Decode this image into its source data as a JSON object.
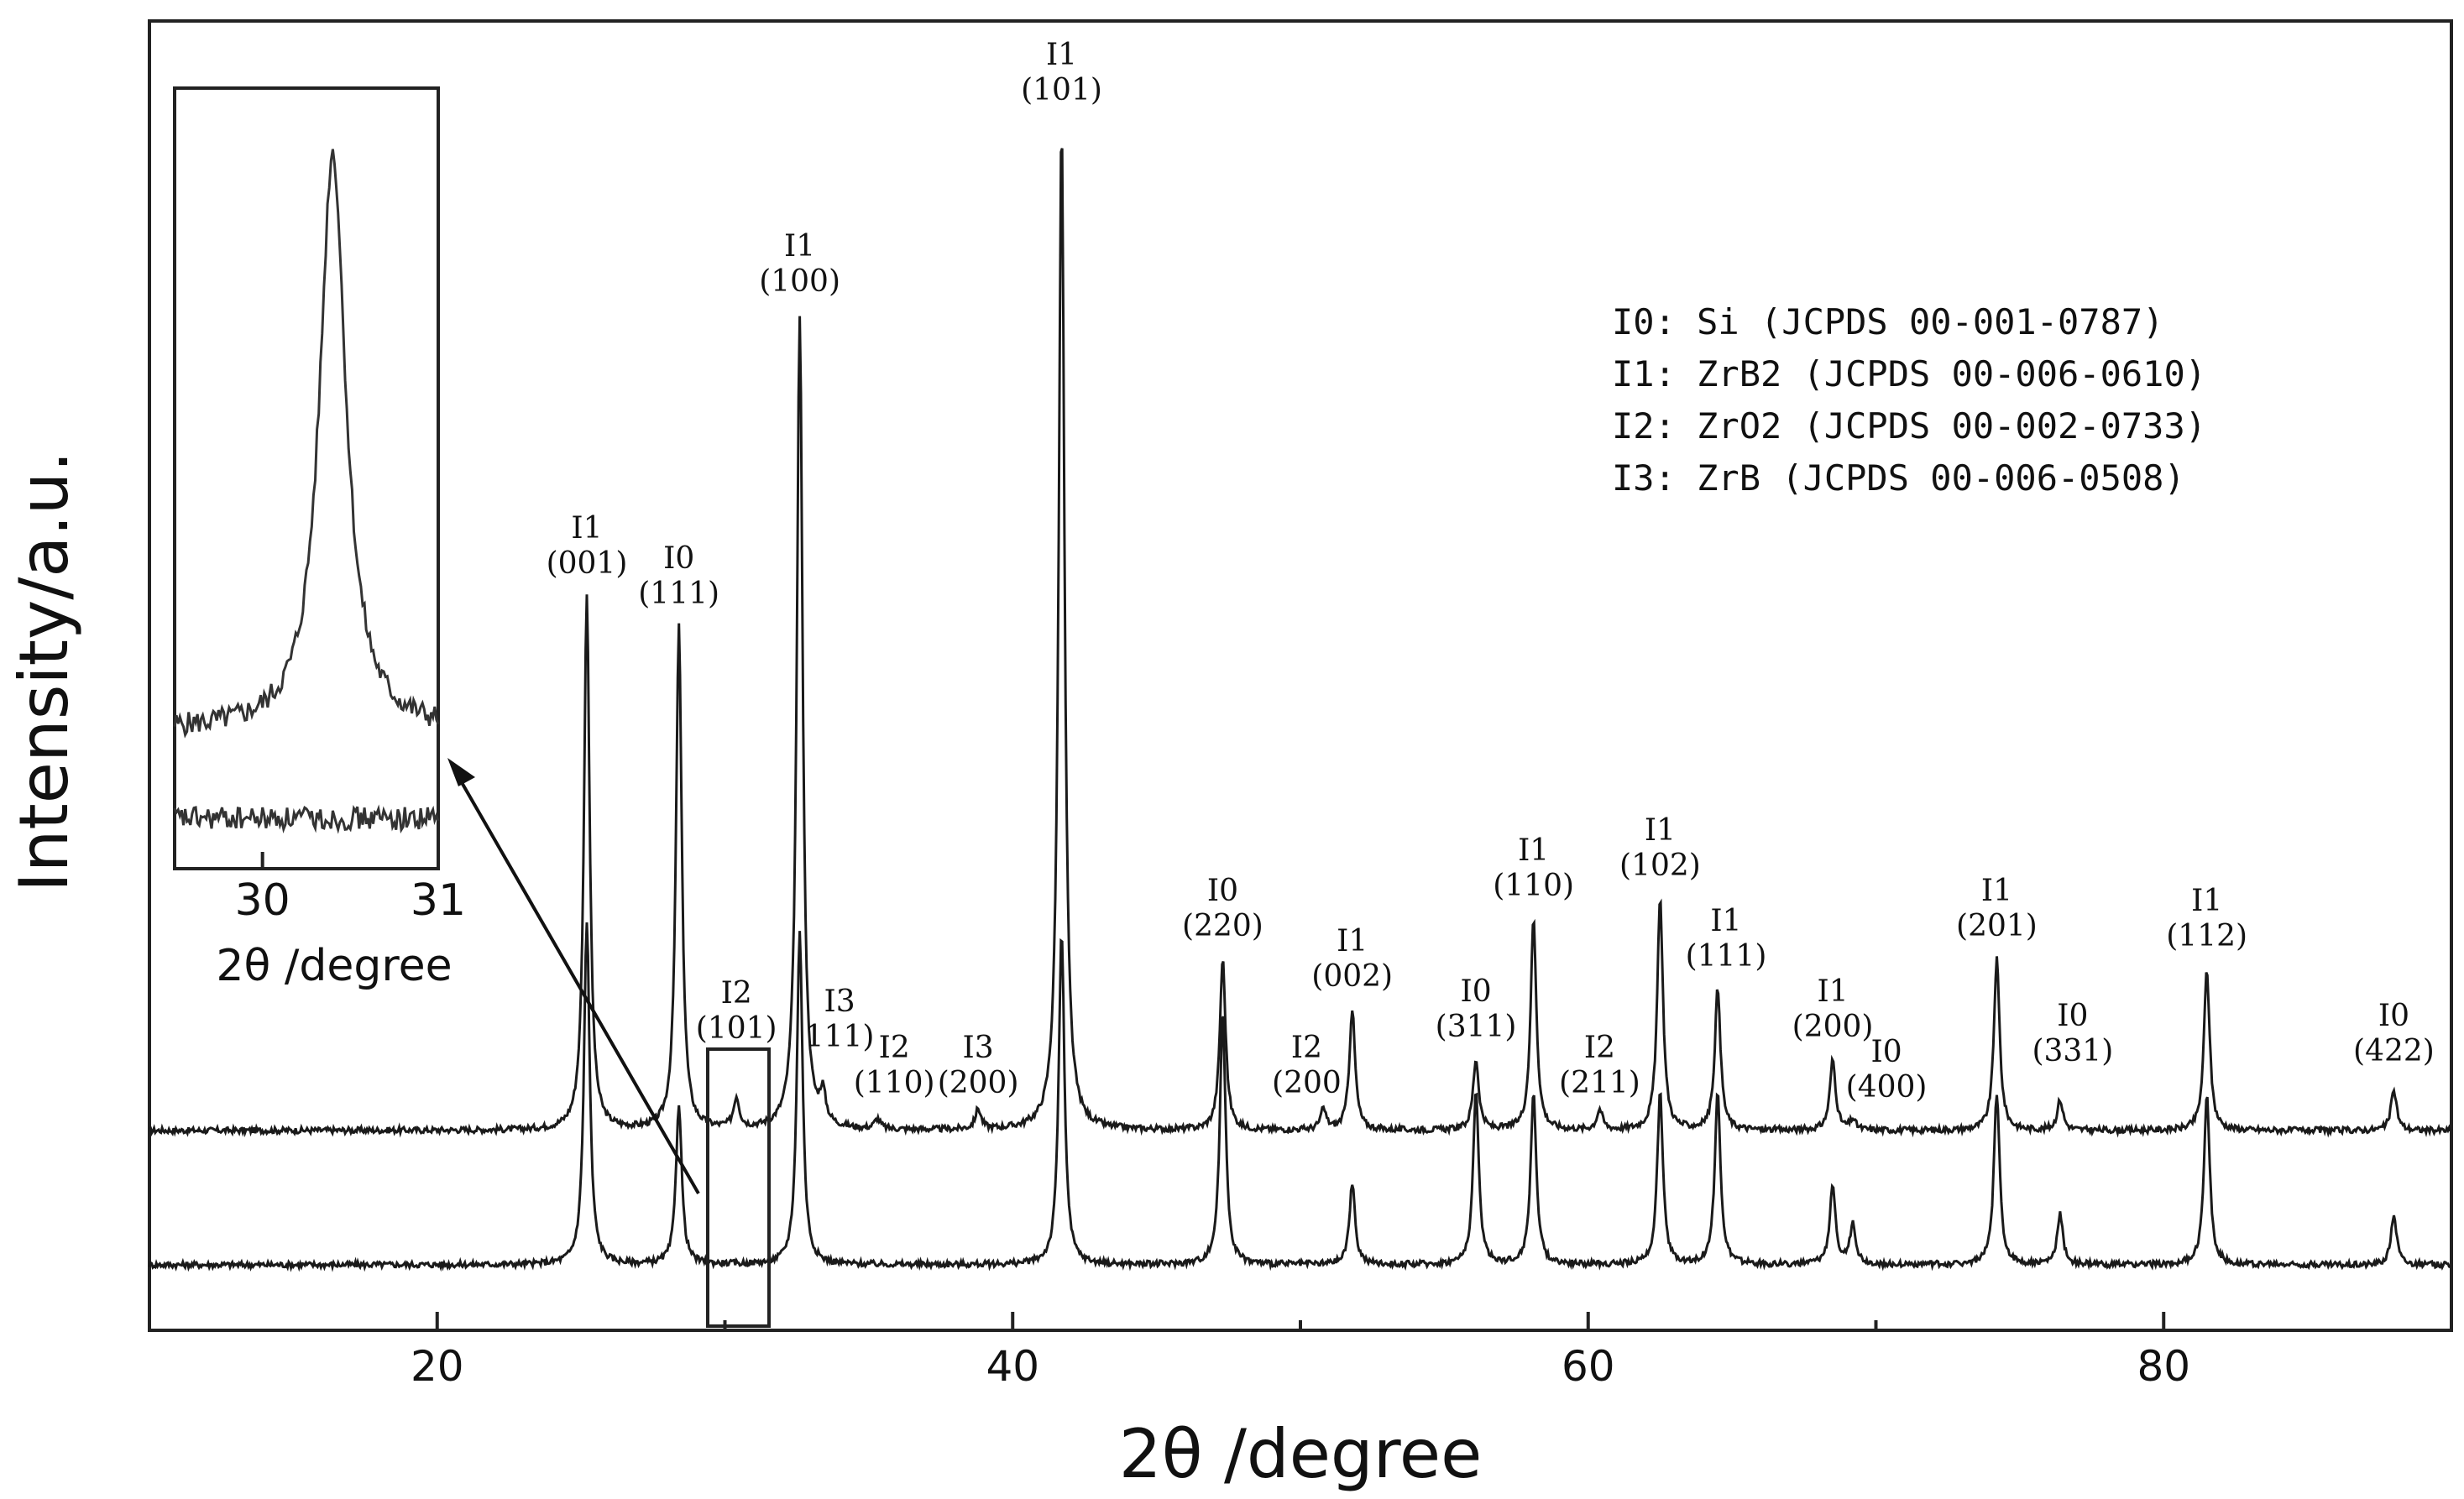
{
  "chart_data": [
    {
      "type": "line",
      "xlabel": "2θ /degree",
      "ylabel": "Intensity/a.u.",
      "xlim": [
        10,
        90
      ],
      "x_ticks": [
        20,
        40,
        60,
        80
      ],
      "grid": false,
      "legend_position": "top-right",
      "legend": [
        "I0: Si (JCPDS 00-001-0787)",
        "I1: ZrB2 (JCPDS 00-006-0610)",
        "I2: ZrO2 (JCPDS 00-002-0733)",
        "I3: ZrB (JCPDS 00-006-0508)"
      ],
      "series": [
        {
          "peaks": [
            {
              "x": 25.2,
              "y": 0.53
            },
            {
              "x": 28.4,
              "y": 0.5
            },
            {
              "x": 30.4,
              "y": 0.03
            },
            {
              "x": 32.6,
              "y": 0.81
            },
            {
              "x": 33.4,
              "y": 0.03
            },
            {
              "x": 35.3,
              "y": 0.01
            },
            {
              "x": 38.8,
              "y": 0.02
            },
            {
              "x": 41.7,
              "y": 1.0
            },
            {
              "x": 47.3,
              "y": 0.17
            },
            {
              "x": 50.8,
              "y": 0.02
            },
            {
              "x": 51.8,
              "y": 0.12
            },
            {
              "x": 56.1,
              "y": 0.07
            },
            {
              "x": 58.1,
              "y": 0.21
            },
            {
              "x": 60.4,
              "y": 0.02
            },
            {
              "x": 62.5,
              "y": 0.23
            },
            {
              "x": 64.5,
              "y": 0.14
            },
            {
              "x": 68.5,
              "y": 0.07
            },
            {
              "x": 69.2,
              "y": 0.01
            },
            {
              "x": 74.2,
              "y": 0.17
            },
            {
              "x": 76.4,
              "y": 0.03
            },
            {
              "x": 81.5,
              "y": 0.16
            },
            {
              "x": 88.0,
              "y": 0.04
            }
          ]
        },
        {
          "peaks": [
            {
              "x": 25.2,
              "y": 0.34
            },
            {
              "x": 28.4,
              "y": 0.16
            },
            {
              "x": 32.6,
              "y": 0.33
            },
            {
              "x": 41.7,
              "y": 0.33
            },
            {
              "x": 47.3,
              "y": 0.25
            },
            {
              "x": 51.8,
              "y": 0.08
            },
            {
              "x": 56.1,
              "y": 0.17
            },
            {
              "x": 58.1,
              "y": 0.17
            },
            {
              "x": 62.5,
              "y": 0.17
            },
            {
              "x": 64.5,
              "y": 0.17
            },
            {
              "x": 68.5,
              "y": 0.08
            },
            {
              "x": 69.2,
              "y": 0.04
            },
            {
              "x": 74.2,
              "y": 0.17
            },
            {
              "x": 76.4,
              "y": 0.05
            },
            {
              "x": 81.5,
              "y": 0.17
            },
            {
              "x": 88.0,
              "y": 0.05
            }
          ]
        }
      ],
      "peak_labels": [
        {
          "x": 25.2,
          "phase": "I1",
          "hkl": "(001)"
        },
        {
          "x": 28.4,
          "phase": "I0",
          "hkl": "(111)"
        },
        {
          "x": 30.4,
          "phase": "I2",
          "hkl": "(101)"
        },
        {
          "x": 32.6,
          "phase": "I1",
          "hkl": "(100)"
        },
        {
          "x": 33.4,
          "phase": "I3",
          "hkl": "111)"
        },
        {
          "x": 35.3,
          "phase": "I2",
          "hkl": "(110)"
        },
        {
          "x": 38.8,
          "phase": "I3",
          "hkl": "(200)"
        },
        {
          "x": 41.7,
          "phase": "I1",
          "hkl": "(101)"
        },
        {
          "x": 47.3,
          "phase": "I0",
          "hkl": "(220)"
        },
        {
          "x": 50.8,
          "phase": "I2",
          "hkl": "(200"
        },
        {
          "x": 51.8,
          "phase": "I1",
          "hkl": "(002)"
        },
        {
          "x": 56.1,
          "phase": "I0",
          "hkl": "(311)"
        },
        {
          "x": 58.1,
          "phase": "I1",
          "hkl": "(110)"
        },
        {
          "x": 60.4,
          "phase": "I2",
          "hkl": "(211)"
        },
        {
          "x": 62.5,
          "phase": "I1",
          "hkl": "(102)"
        },
        {
          "x": 64.5,
          "phase": "I1",
          "hkl": "(111)"
        },
        {
          "x": 68.5,
          "phase": "I1",
          "hkl": "(200)"
        },
        {
          "x": 69.2,
          "phase": "I0",
          "hkl": "(400)"
        },
        {
          "x": 74.2,
          "phase": "I1",
          "hkl": "(201)"
        },
        {
          "x": 76.4,
          "phase": "I0",
          "hkl": "(331)"
        },
        {
          "x": 81.5,
          "phase": "I1",
          "hkl": "(112)"
        },
        {
          "x": 88.0,
          "phase": "I0",
          "hkl": "(422)"
        }
      ]
    },
    {
      "type": "line",
      "xlabel": "2θ /degree",
      "ylabel": "",
      "xlim": [
        29.5,
        31
      ],
      "x_ticks": [
        30,
        31
      ],
      "grid": false,
      "series": [
        {
          "peaks": [
            {
              "x": 30.4,
              "y": 1.0
            }
          ]
        },
        {
          "peaks": []
        }
      ]
    }
  ]
}
